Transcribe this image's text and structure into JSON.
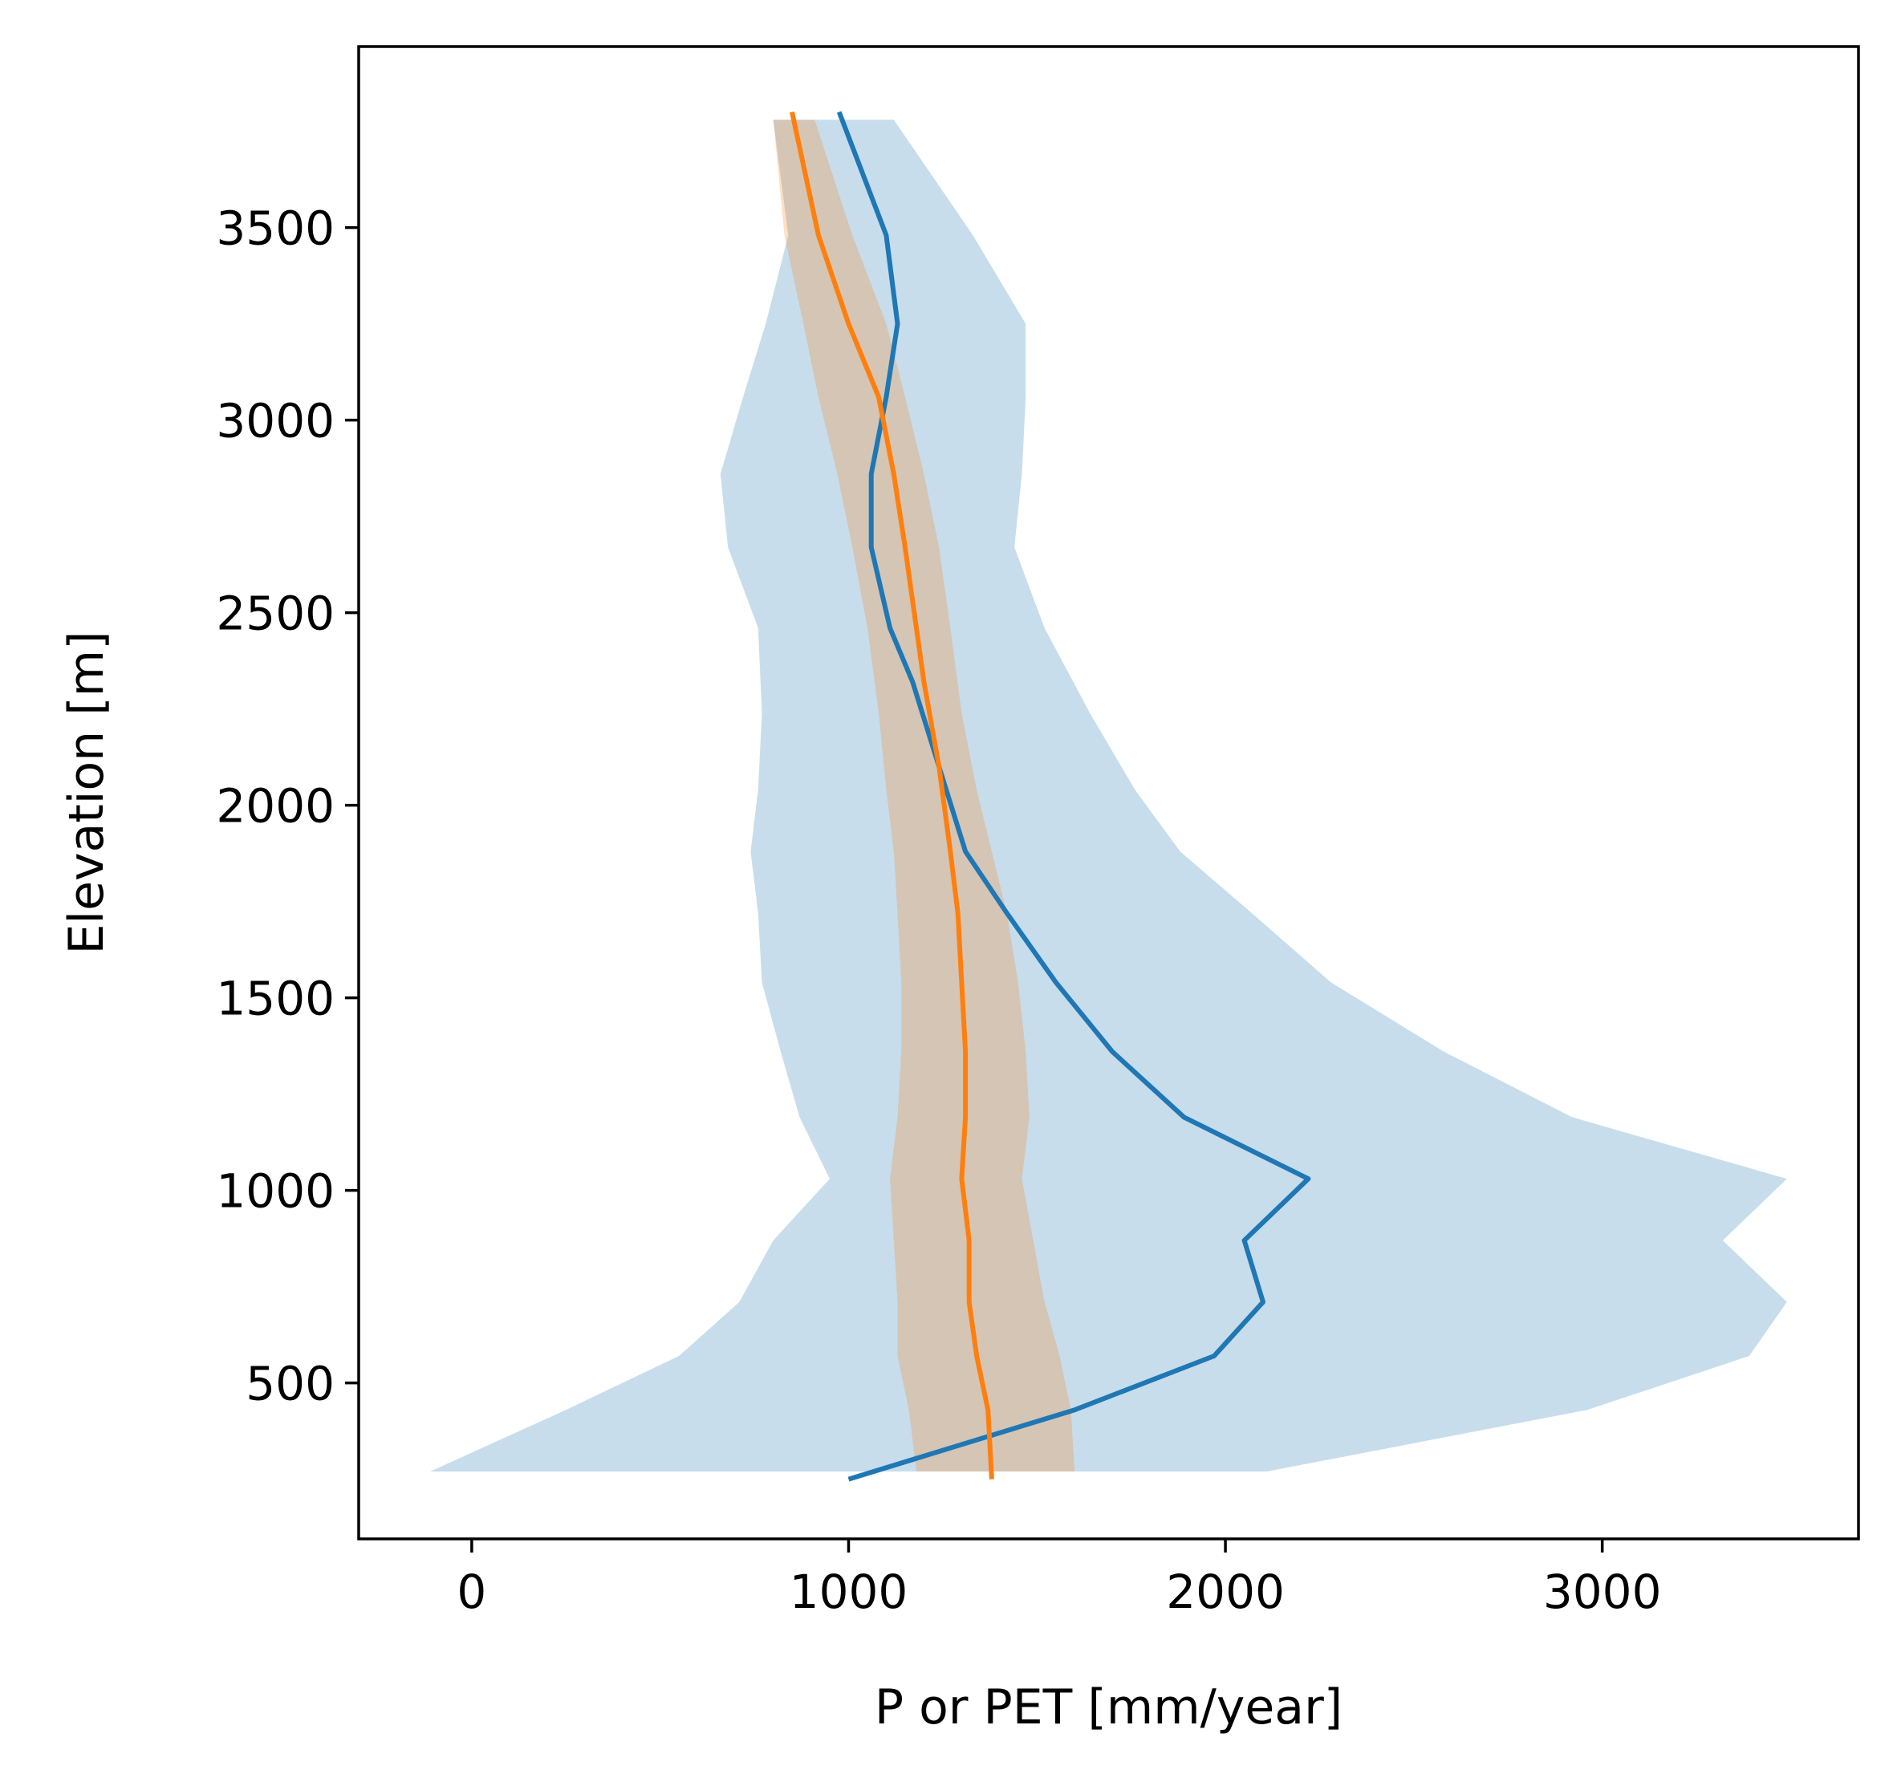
{
  "chart_data": {
    "type": "line",
    "xlabel": "P or PET [mm/year]",
    "ylabel": "Elevation [m]",
    "xlim": [
      -300,
      3680
    ],
    "ylim": [
      95,
      3970
    ],
    "xticks": [
      0,
      1000,
      2000,
      3000
    ],
    "yticks": [
      500,
      1000,
      1500,
      2000,
      2500,
      3000,
      3500
    ],
    "grid": false,
    "legend": "none",
    "colors": {
      "p_line": "#1f77b4",
      "pet_line": "#ff7f0e",
      "p_band": "#1f77b4",
      "pet_band": "#ff7f0e",
      "overlap": "#d4c4b4"
    },
    "series": [
      {
        "kind": "line",
        "color": "#1f77b4",
        "points": [
          [
            1000,
            250
          ],
          [
            1600,
            430
          ],
          [
            1970,
            570
          ],
          [
            2100,
            710
          ],
          [
            2050,
            870
          ],
          [
            2220,
            1030
          ],
          [
            1890,
            1190
          ],
          [
            1700,
            1360
          ],
          [
            1550,
            1540
          ],
          [
            1420,
            1720
          ],
          [
            1310,
            1880
          ],
          [
            1240,
            2100
          ],
          [
            1170,
            2320
          ],
          [
            1110,
            2460
          ],
          [
            1060,
            2670
          ],
          [
            1060,
            2860
          ],
          [
            1100,
            3060
          ],
          [
            1130,
            3250
          ],
          [
            1100,
            3480
          ],
          [
            975,
            3800
          ]
        ]
      },
      {
        "kind": "band",
        "color": "#1f77b4",
        "opacity": 0.25,
        "elevations": [
          270,
          430,
          570,
          710,
          870,
          1030,
          1190,
          1360,
          1540,
          1720,
          1880,
          2040,
          2240,
          2460,
          2670,
          2860,
          3060,
          3250,
          3480,
          3780
        ],
        "lower": [
          -110,
          250,
          550,
          710,
          800,
          950,
          870,
          820,
          770,
          760,
          740,
          760,
          770,
          760,
          680,
          660,
          720,
          780,
          840,
          800
        ],
        "upper": [
          2110,
          2960,
          3390,
          3490,
          3320,
          3490,
          2920,
          2580,
          2280,
          2070,
          1880,
          1760,
          1640,
          1520,
          1440,
          1460,
          1470,
          1470,
          1330,
          1120
        ]
      },
      {
        "kind": "line",
        "color": "#ff7f0e",
        "points": [
          [
            1380,
            250
          ],
          [
            1370,
            430
          ],
          [
            1340,
            570
          ],
          [
            1320,
            710
          ],
          [
            1320,
            870
          ],
          [
            1300,
            1030
          ],
          [
            1310,
            1190
          ],
          [
            1310,
            1360
          ],
          [
            1300,
            1540
          ],
          [
            1290,
            1720
          ],
          [
            1270,
            1880
          ],
          [
            1240,
            2100
          ],
          [
            1200,
            2320
          ],
          [
            1180,
            2460
          ],
          [
            1150,
            2670
          ],
          [
            1120,
            2860
          ],
          [
            1080,
            3060
          ],
          [
            1000,
            3250
          ],
          [
            920,
            3480
          ],
          [
            850,
            3800
          ]
        ]
      },
      {
        "kind": "band",
        "color": "#ff7f0e",
        "opacity": 0.25,
        "elevations": [
          270,
          430,
          570,
          710,
          870,
          1030,
          1190,
          1360,
          1540,
          1720,
          1880,
          2040,
          2240,
          2460,
          2670,
          2860,
          3060,
          3250,
          3480,
          3780
        ],
        "lower": [
          1180,
          1160,
          1130,
          1130,
          1120,
          1110,
          1130,
          1140,
          1140,
          1130,
          1120,
          1100,
          1080,
          1050,
          1010,
          970,
          920,
          880,
          830,
          800
        ],
        "upper": [
          1600,
          1590,
          1560,
          1520,
          1490,
          1460,
          1480,
          1470,
          1450,
          1420,
          1380,
          1340,
          1300,
          1270,
          1240,
          1200,
          1150,
          1100,
          1010,
          910
        ]
      }
    ]
  }
}
